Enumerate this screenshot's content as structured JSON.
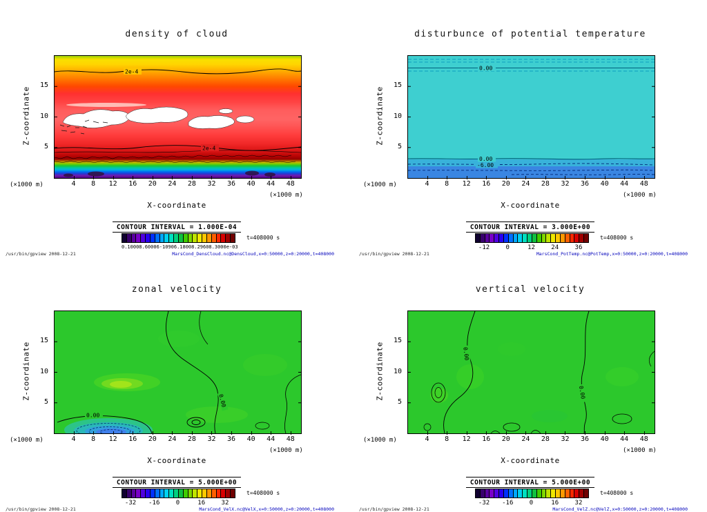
{
  "app": {
    "background": "#ffffff"
  },
  "shared": {
    "colorbar_colors": [
      "#100030",
      "#38006c",
      "#5a00a0",
      "#7800c8",
      "#5000e0",
      "#2800f0",
      "#0030ff",
      "#0070ff",
      "#00a8ff",
      "#00d0f0",
      "#00e0c0",
      "#00d080",
      "#10c040",
      "#40cc00",
      "#80d800",
      "#c0e400",
      "#f0e800",
      "#ffc800",
      "#ff9800",
      "#ff6000",
      "#ff2800",
      "#d80000",
      "#a00000",
      "#700000"
    ]
  },
  "panels": [
    {
      "title": "density of cloud",
      "xlabel": "X-coordinate",
      "ylabel": "Z-coordinate",
      "axis_unit_left": "(×1000 m)",
      "axis_unit_right": "(×1000 m)",
      "y_ticks": [
        "5",
        "10",
        "15"
      ],
      "x_ticks": [
        "4",
        "8",
        "12",
        "16",
        "20",
        "24",
        "28",
        "32",
        "36",
        "40",
        "44",
        "48"
      ],
      "contour_interval_label": "CONTOUR INTERVAL = 1.000E-04",
      "labels": [
        "2e-4",
        "2e-4"
      ],
      "cbar_labels": [
        "0.10008.60006-10906.18008.29608.3000e-03"
      ],
      "time_label": "t=408000 s",
      "footer_left": "/usr/bin/gpview  2008-12-21",
      "footer_right": "MarsCond_DensCloud.nc@DensCloud,x=0:50000,z=0:20000,t=408000"
    },
    {
      "title": "disturbunce of potential temperature",
      "xlabel": "X-coordinate",
      "ylabel": "Z-coordinate",
      "axis_unit_left": "(×1000 m)",
      "axis_unit_right": "(×1000 m)",
      "y_ticks": [
        "5",
        "10",
        "15"
      ],
      "x_ticks": [
        "4",
        "8",
        "12",
        "16",
        "20",
        "24",
        "28",
        "32",
        "36",
        "40",
        "44",
        "48"
      ],
      "contour_interval_label": "CONTOUR INTERVAL = 3.000E+00",
      "labels": [
        "0.00",
        "0.00",
        "-6.00"
      ],
      "cbar_labels": [
        "-12",
        "0",
        "12",
        "24",
        "36"
      ],
      "time_label": "t=408000 s",
      "footer_left": "/usr/bin/gpview  2008-12-21",
      "footer_right": "MarsCond_PotTemp.nc@PotTemp,x=0:50000,z=0:20000,t=408000"
    },
    {
      "title": "zonal velocity",
      "xlabel": "X-coordinate",
      "ylabel": "Z-coordinate",
      "axis_unit_left": "(×1000 m)",
      "axis_unit_right": "(×1000 m)",
      "y_ticks": [
        "5",
        "10",
        "15"
      ],
      "x_ticks": [
        "4",
        "8",
        "12",
        "16",
        "20",
        "24",
        "28",
        "32",
        "36",
        "40",
        "44",
        "48"
      ],
      "contour_interval_label": "CONTOUR INTERVAL = 5.000E+00",
      "labels": [
        "0.00",
        "0.00"
      ],
      "cbar_labels": [
        "-32",
        "-16",
        "0",
        "16",
        "32"
      ],
      "time_label": "t=408000 s",
      "footer_left": "/usr/bin/gpview  2008-12-21",
      "footer_right": "MarsCond_VelX.nc@VelX,x=0:50000,z=0:20000,t=408000"
    },
    {
      "title": "vertical velocity",
      "xlabel": "X-coordinate",
      "ylabel": "Z-coordinate",
      "axis_unit_left": "(×1000 m)",
      "axis_unit_right": "(×1000 m)",
      "y_ticks": [
        "5",
        "10",
        "15"
      ],
      "x_ticks": [
        "4",
        "8",
        "12",
        "16",
        "20",
        "24",
        "28",
        "32",
        "36",
        "40",
        "44",
        "48"
      ],
      "contour_interval_label": "CONTOUR INTERVAL = 5.000E+00",
      "labels": [
        "0.00",
        "0.00"
      ],
      "cbar_labels": [
        "-32",
        "-16",
        "0",
        "16",
        "32"
      ],
      "time_label": "t=408000 s",
      "footer_left": "/usr/bin/gpview  2008-12-21",
      "footer_right": "MarsCond_VelZ.nc@VelZ,x=0:50000,z=0:20000,t=408000"
    }
  ],
  "chart_data": [
    {
      "type": "heatmap",
      "variant": "filled-contour",
      "title": "density of cloud",
      "xlabel": "X-coordinate (×1000 m)",
      "ylabel": "Z-coordinate (×1000 m)",
      "x_range": [
        0,
        50
      ],
      "y_range": [
        0,
        20
      ],
      "x_ticks": [
        4,
        8,
        12,
        16,
        20,
        24,
        28,
        32,
        36,
        40,
        44,
        48
      ],
      "y_ticks": [
        5,
        10,
        15
      ],
      "contour_interval": 0.0001,
      "contour_labels": [
        {
          "value": "2e-4",
          "z_approx": 17.5,
          "x_approx": 16
        },
        {
          "value": "2e-4",
          "z_approx": 5,
          "x_approx": 32
        }
      ],
      "time_s": 408000,
      "colorbar_ticks_note": "tick labels overlap and are illegible (order 1e-4 to 3e-4, suffix e-03 visible)",
      "field_structure": "horizontal layers: yellow-green top edge, yellow/orange/red for z 12-20, pink band with white low-density cloud gaps z 7-12, deep red z 4-6 bounded by 2e-4 contour, thin green-cyan-blue-purple layers with noisy black contours below z 3",
      "legend_position": "horizontal colorbar below plot",
      "grid": false
    },
    {
      "type": "heatmap",
      "variant": "filled-contour",
      "title": "disturbunce of potential temperature",
      "xlabel": "X-coordinate (×1000 m)",
      "ylabel": "Z-coordinate (×1000 m)",
      "x_range": [
        0,
        50
      ],
      "y_range": [
        0,
        20
      ],
      "x_ticks": [
        4,
        8,
        12,
        16,
        20,
        24,
        28,
        32,
        36,
        40,
        44,
        48
      ],
      "y_ticks": [
        5,
        10,
        15
      ],
      "contour_interval": 3.0,
      "colorbar_ticks": [
        -12,
        0,
        12,
        24,
        36
      ],
      "contour_labels": [
        {
          "value": 0.0,
          "z_approx": 17.5
        },
        {
          "value": 0.0,
          "z_approx": 3.2
        },
        {
          "value": -6.0,
          "z_approx": 2.2
        }
      ],
      "time_s": 408000,
      "field_structure": "nearly uniform ~0 (cyan) through most of the domain; dashed contours near top edge; negative disturbance (about -6, darker blue) below z=3",
      "legend_position": "horizontal colorbar below plot",
      "grid": false
    },
    {
      "type": "heatmap",
      "variant": "filled-contour",
      "title": "zonal velocity",
      "xlabel": "X-coordinate (×1000 m)",
      "ylabel": "Z-coordinate (×1000 m)",
      "x_range": [
        0,
        50
      ],
      "y_range": [
        0,
        20
      ],
      "x_ticks": [
        4,
        8,
        12,
        16,
        20,
        24,
        28,
        32,
        36,
        40,
        44,
        48
      ],
      "y_ticks": [
        5,
        10,
        15
      ],
      "contour_interval": 5.0,
      "colorbar_ticks": [
        -32,
        -16,
        0,
        16,
        32
      ],
      "contour_labels": [
        {
          "value": 0.0,
          "x_approx": 8,
          "z_approx": 2.5
        },
        {
          "value": 0.0,
          "x_approx": 33,
          "z_approx": 6
        }
      ],
      "time_s": 408000,
      "field_structure": "mostly near-zero (green); weak positive patch (~+5, yellow-green) around x 8-20 z 7-9; negative pocket (cyan-blue, to about -15) near x 2-18 below z 3 with dashed negative contours; meandering 0.00 contour from top centre to bottom",
      "legend_position": "horizontal colorbar below plot",
      "grid": false
    },
    {
      "type": "heatmap",
      "variant": "filled-contour",
      "title": "vertical velocity",
      "xlabel": "X-coordinate (×1000 m)",
      "ylabel": "Z-coordinate (×1000 m)",
      "x_range": [
        0,
        50
      ],
      "y_range": [
        0,
        20
      ],
      "x_ticks": [
        4,
        8,
        12,
        16,
        20,
        24,
        28,
        32,
        36,
        40,
        44,
        48
      ],
      "y_ticks": [
        5,
        10,
        15
      ],
      "contour_interval": 5.0,
      "colorbar_ticks": [
        -32,
        -16,
        0,
        16,
        32
      ],
      "contour_labels": [
        {
          "value": 0.0,
          "x_approx": 12,
          "z_approx": 13
        },
        {
          "value": 0.0,
          "x_approx": 36,
          "z_approx": 7
        }
      ],
      "time_s": 408000,
      "field_structure": "near-zero everywhere (green) with weak cells; two 0.00 contours meander vertically near x 12-14 and x 35-37; small closed contours near surface",
      "legend_position": "horizontal colorbar below plot",
      "grid": false
    }
  ]
}
